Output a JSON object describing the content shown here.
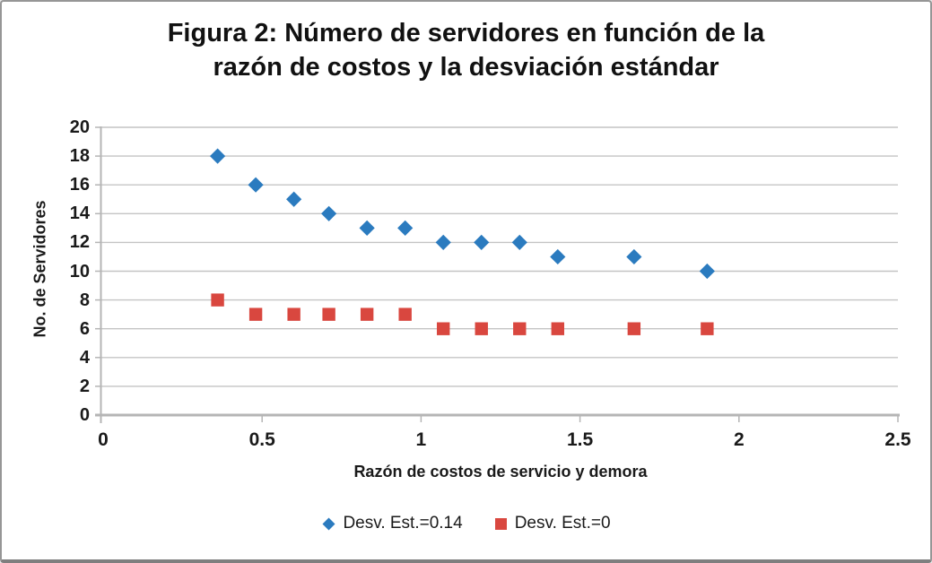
{
  "figure": {
    "title_lines": [
      "Figura 2: Número de servidores en función de la",
      "razón de costos y la desviación estándar"
    ]
  },
  "chart_data": {
    "type": "scatter",
    "title": "Figura 2: Número de servidores en función de la razón de costos y la desviación estándar",
    "xlabel": "Razón de costos de servicio y demora",
    "ylabel": "No. de Servidores",
    "xlim": [
      0,
      2.5
    ],
    "ylim": [
      0,
      20
    ],
    "x_ticks": [
      0,
      0.5,
      1,
      1.5,
      2,
      2.5
    ],
    "x_tick_labels": [
      "0",
      "0.5",
      "1",
      "1.5",
      "2",
      "2.5"
    ],
    "y_ticks": [
      0,
      2,
      4,
      6,
      8,
      10,
      12,
      14,
      16,
      18,
      20
    ],
    "y_tick_labels": [
      "0",
      "2",
      "4",
      "6",
      "8",
      "10",
      "12",
      "14",
      "16",
      "18",
      "20"
    ],
    "grid": "horizontal gridlines at every y tick",
    "legend_position": "bottom center",
    "x": [
      0.36,
      0.48,
      0.6,
      0.71,
      0.83,
      0.95,
      1.07,
      1.19,
      1.31,
      1.43,
      1.67,
      1.9
    ],
    "series": [
      {
        "name": "Desv. Est.=0.14",
        "marker": "diamond",
        "color": "#2B7BBF",
        "values": [
          18,
          16,
          15,
          14,
          13,
          13,
          12,
          12,
          12,
          11,
          11,
          10
        ]
      },
      {
        "name": "Desv. Est.=0",
        "marker": "square",
        "color": "#D9473F",
        "values": [
          8,
          7,
          7,
          7,
          7,
          7,
          6,
          6,
          6,
          6,
          6,
          6
        ]
      }
    ]
  },
  "style": {
    "grid_color": "#C4C4C4",
    "axis_color": "#B5B5B5",
    "text_color": "#1A1A1A",
    "border_color": "#8E8E8E",
    "background": "#FFFFFF"
  }
}
